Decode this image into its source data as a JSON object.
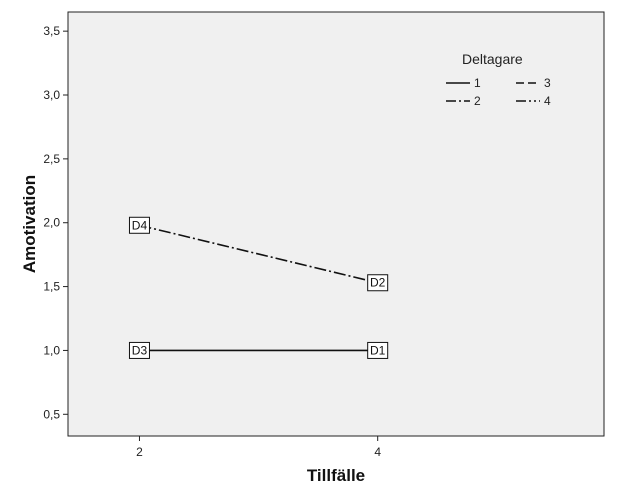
{
  "chart_data": {
    "type": "line",
    "title": "",
    "xlabel": "Tillfälle",
    "ylabel": "Amotivation",
    "x_ticks": [
      "2",
      "4"
    ],
    "x_range": [
      1.4,
      5.9
    ],
    "y_ticks": [
      "0,5",
      "1,0",
      "1,5",
      "2,0",
      "2,5",
      "3,0",
      "3,5"
    ],
    "y_tick_values": [
      0.5,
      1.0,
      1.5,
      2.0,
      2.5,
      3.0,
      3.5
    ],
    "ylim": [
      0.33,
      3.65
    ],
    "grid": false,
    "background": "#f0f0f0",
    "legend": {
      "title": "Deltagare",
      "placement": "top-right",
      "entries": [
        "1",
        "3",
        "2",
        "4"
      ]
    },
    "series": [
      {
        "name": "1",
        "dash": "solid",
        "points": [
          {
            "x": 2,
            "y": 1.0,
            "label": "D3"
          },
          {
            "x": 4,
            "y": 1.0,
            "label": "D1"
          }
        ]
      },
      {
        "name": "2",
        "dash": "dashdot",
        "points": [
          {
            "x": 2,
            "y": 1.98,
            "label": "D4"
          },
          {
            "x": 4,
            "y": 1.53,
            "label": "D2"
          }
        ]
      }
    ]
  }
}
